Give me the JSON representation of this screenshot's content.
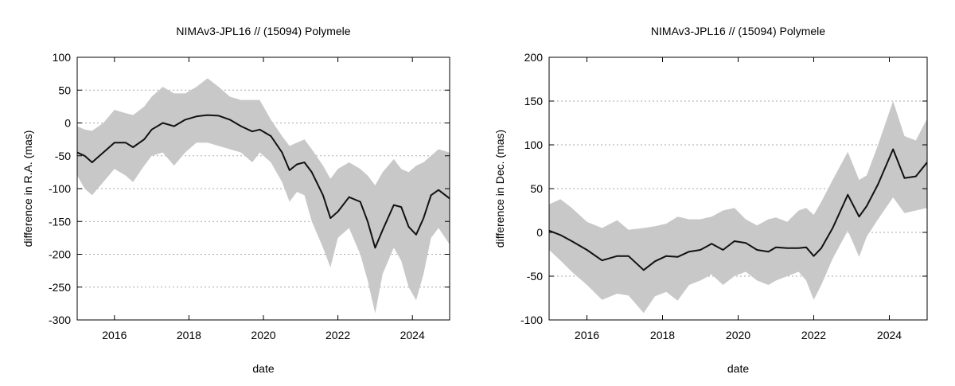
{
  "chart_data": [
    {
      "type": "line",
      "title": "NIMAv3-JPL16 // (15094) Polymele",
      "xlabel": "date",
      "ylabel": "difference in R.A. (mas)",
      "xlim": [
        2015.0,
        2025.0
      ],
      "ylim": [
        -300,
        100
      ],
      "xticks": [
        2016,
        2018,
        2020,
        2022,
        2024
      ],
      "xtick_labels": [
        "2016",
        "2018",
        "2020",
        "2022",
        "2024"
      ],
      "yticks": [
        -300,
        -250,
        -200,
        -150,
        -100,
        -50,
        0,
        50,
        100
      ],
      "ytick_labels": [
        "-300",
        "-250",
        "-200",
        "-150",
        "-100",
        "-50",
        "0",
        "50",
        "100"
      ],
      "grid": "horizontal-dotted",
      "colors": {
        "line": "#111111",
        "band": "#c8c8c8",
        "grid": "#aaaaaa"
      },
      "series": [
        {
          "x": [
            2015.0,
            2015.2,
            2015.4,
            2015.7,
            2016.0,
            2016.3,
            2016.5,
            2016.8,
            2017.0,
            2017.3,
            2017.6,
            2017.9,
            2018.2,
            2018.5,
            2018.8,
            2019.1,
            2019.4,
            2019.7,
            2019.9,
            2020.2,
            2020.5,
            2020.7,
            2020.9,
            2021.1,
            2021.3,
            2021.6,
            2021.8,
            2022.0,
            2022.3,
            2022.6,
            2022.8,
            2023.0,
            2023.2,
            2023.5,
            2023.7,
            2023.9,
            2024.1,
            2024.3,
            2024.5,
            2024.7,
            2025.0
          ],
          "y": [
            -45,
            -50,
            -60,
            -45,
            -30,
            -30,
            -37,
            -25,
            -10,
            0,
            -5,
            5,
            10,
            12,
            11,
            5,
            -5,
            -13,
            -10,
            -20,
            -45,
            -72,
            -63,
            -60,
            -75,
            -110,
            -145,
            -135,
            -113,
            -120,
            -150,
            -190,
            -163,
            -125,
            -128,
            -158,
            -170,
            -145,
            -110,
            -102,
            -115
          ],
          "upper": [
            -5,
            -10,
            -12,
            0,
            20,
            15,
            12,
            25,
            40,
            55,
            45,
            45,
            55,
            68,
            55,
            40,
            35,
            35,
            35,
            5,
            -20,
            -35,
            -30,
            -25,
            -40,
            -65,
            -85,
            -70,
            -60,
            -70,
            -80,
            -95,
            -75,
            -55,
            -70,
            -75,
            -65,
            -60,
            -50,
            -40,
            -45
          ],
          "lower": [
            -80,
            -100,
            -110,
            -90,
            -70,
            -80,
            -90,
            -65,
            -50,
            -45,
            -65,
            -45,
            -30,
            -30,
            -35,
            -40,
            -45,
            -60,
            -45,
            -60,
            -90,
            -120,
            -105,
            -110,
            -150,
            -190,
            -220,
            -175,
            -160,
            -200,
            -240,
            -290,
            -230,
            -190,
            -210,
            -250,
            -270,
            -230,
            -175,
            -160,
            -185
          ]
        }
      ]
    },
    {
      "type": "line",
      "title": "NIMAv3-JPL16 // (15094) Polymele",
      "xlabel": "date",
      "ylabel": "difference in Dec. (mas)",
      "xlim": [
        2015.0,
        2025.0
      ],
      "ylim": [
        -100,
        200
      ],
      "xticks": [
        2016,
        2018,
        2020,
        2022,
        2024
      ],
      "xtick_labels": [
        "2016",
        "2018",
        "2020",
        "2022",
        "2024"
      ],
      "yticks": [
        -100,
        -50,
        0,
        50,
        100,
        150,
        200
      ],
      "ytick_labels": [
        "-100",
        "-50",
        "0",
        "50",
        "100",
        "150",
        "200"
      ],
      "grid": "horizontal-dotted",
      "colors": {
        "line": "#111111",
        "band": "#c8c8c8",
        "grid": "#aaaaaa"
      },
      "series": [
        {
          "x": [
            2015.0,
            2015.3,
            2015.6,
            2016.0,
            2016.4,
            2016.8,
            2017.1,
            2017.5,
            2017.8,
            2018.1,
            2018.4,
            2018.7,
            2019.0,
            2019.3,
            2019.6,
            2019.9,
            2020.2,
            2020.5,
            2020.8,
            2021.0,
            2021.3,
            2021.6,
            2021.8,
            2022.0,
            2022.2,
            2022.5,
            2022.9,
            2023.2,
            2023.4,
            2023.7,
            2024.1,
            2024.4,
            2024.7,
            2025.0
          ],
          "y": [
            2,
            -3,
            -10,
            -20,
            -32,
            -27,
            -27,
            -43,
            -33,
            -27,
            -28,
            -22,
            -20,
            -13,
            -20,
            -10,
            -12,
            -20,
            -22,
            -17,
            -18,
            -18,
            -17,
            -27,
            -18,
            5,
            43,
            18,
            30,
            55,
            95,
            62,
            64,
            80
          ],
          "upper": [
            32,
            38,
            28,
            12,
            5,
            14,
            3,
            5,
            7,
            10,
            18,
            15,
            15,
            18,
            25,
            28,
            15,
            8,
            15,
            17,
            12,
            25,
            28,
            20,
            35,
            60,
            92,
            60,
            65,
            100,
            150,
            110,
            105,
            130
          ],
          "lower": [
            -20,
            -32,
            -45,
            -60,
            -77,
            -70,
            -72,
            -92,
            -73,
            -68,
            -78,
            -60,
            -55,
            -48,
            -60,
            -50,
            -45,
            -55,
            -60,
            -55,
            -50,
            -45,
            -55,
            -77,
            -60,
            -30,
            2,
            -28,
            -5,
            15,
            40,
            22,
            25,
            28
          ]
        }
      ]
    }
  ]
}
